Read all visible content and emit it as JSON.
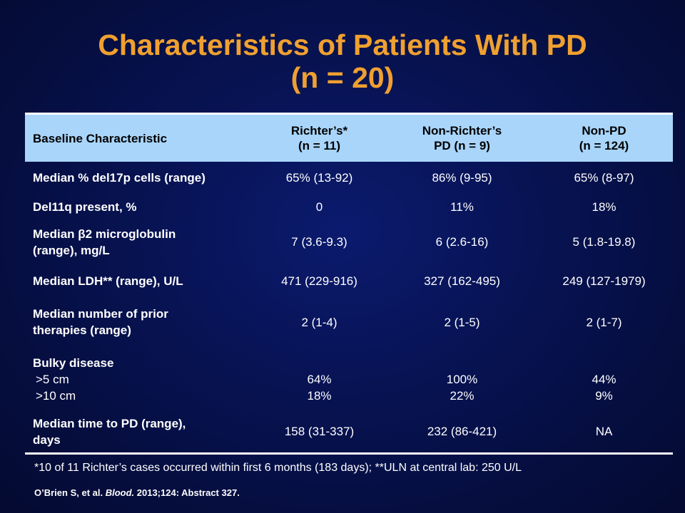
{
  "title": {
    "line1": "Characteristics of Patients With PD",
    "line2": "(n = 20)"
  },
  "table": {
    "headers": [
      {
        "line1": "Baseline Characteristic",
        "line2": ""
      },
      {
        "line1": "Richter’s*",
        "line2": "(n = 11)"
      },
      {
        "line1": "Non-Richter’s",
        "line2": "PD (n = 9)"
      },
      {
        "line1": "Non-PD",
        "line2": "(n = 124)"
      }
    ],
    "rows": [
      {
        "label": [
          "Median % del17p cells (range)"
        ],
        "values": [
          [
            "65% (13-92)"
          ],
          [
            "86% (9-95)"
          ],
          [
            "65% (8-97)"
          ]
        ]
      },
      {
        "label": [
          "Del11q present, %"
        ],
        "values": [
          [
            "0"
          ],
          [
            "11%"
          ],
          [
            "18%"
          ]
        ]
      },
      {
        "label": [
          "Median β2 microglobulin",
          "(range), mg/L"
        ],
        "values": [
          [
            "7 (3.6-9.3)"
          ],
          [
            "6 (2.6-16)"
          ],
          [
            "5 (1.8-19.8)"
          ]
        ]
      },
      {
        "label": [
          "Median LDH** (range), U/L"
        ],
        "values": [
          [
            "471 (229-916)"
          ],
          [
            "327 (162-495)"
          ],
          [
            "249 (127-1979)"
          ]
        ]
      },
      {
        "label": [
          "Median number of prior",
          "therapies (range)"
        ],
        "values": [
          [
            "2 (1-4)"
          ],
          [
            "2 (1-5)"
          ],
          [
            "2 (1-7)"
          ]
        ]
      },
      {
        "label": [
          "Bulky disease",
          ">5 cm",
          ">10 cm"
        ],
        "values": [
          [
            "",
            "64%",
            "18%"
          ],
          [
            "",
            "100%",
            "22%"
          ],
          [
            "",
            "44%",
            "9%"
          ]
        ]
      },
      {
        "label": [
          "Median time to PD (range),",
          "days"
        ],
        "values": [
          [
            "158 (31-337)"
          ],
          [
            "232 (86-421)"
          ],
          [
            "NA"
          ]
        ]
      }
    ]
  },
  "footnote": "*10 of 11 Richter’s cases occurred within first 6 months (183 days);  **ULN at central lab: 250 U/L",
  "citation": {
    "authors": "O’Brien S, et al. ",
    "journal": "Blood.",
    "rest": " 2013;124: Abstract  327."
  },
  "colors": {
    "title": "#f0a030",
    "header_bg": "#a9d5fb",
    "background": "#071250"
  }
}
